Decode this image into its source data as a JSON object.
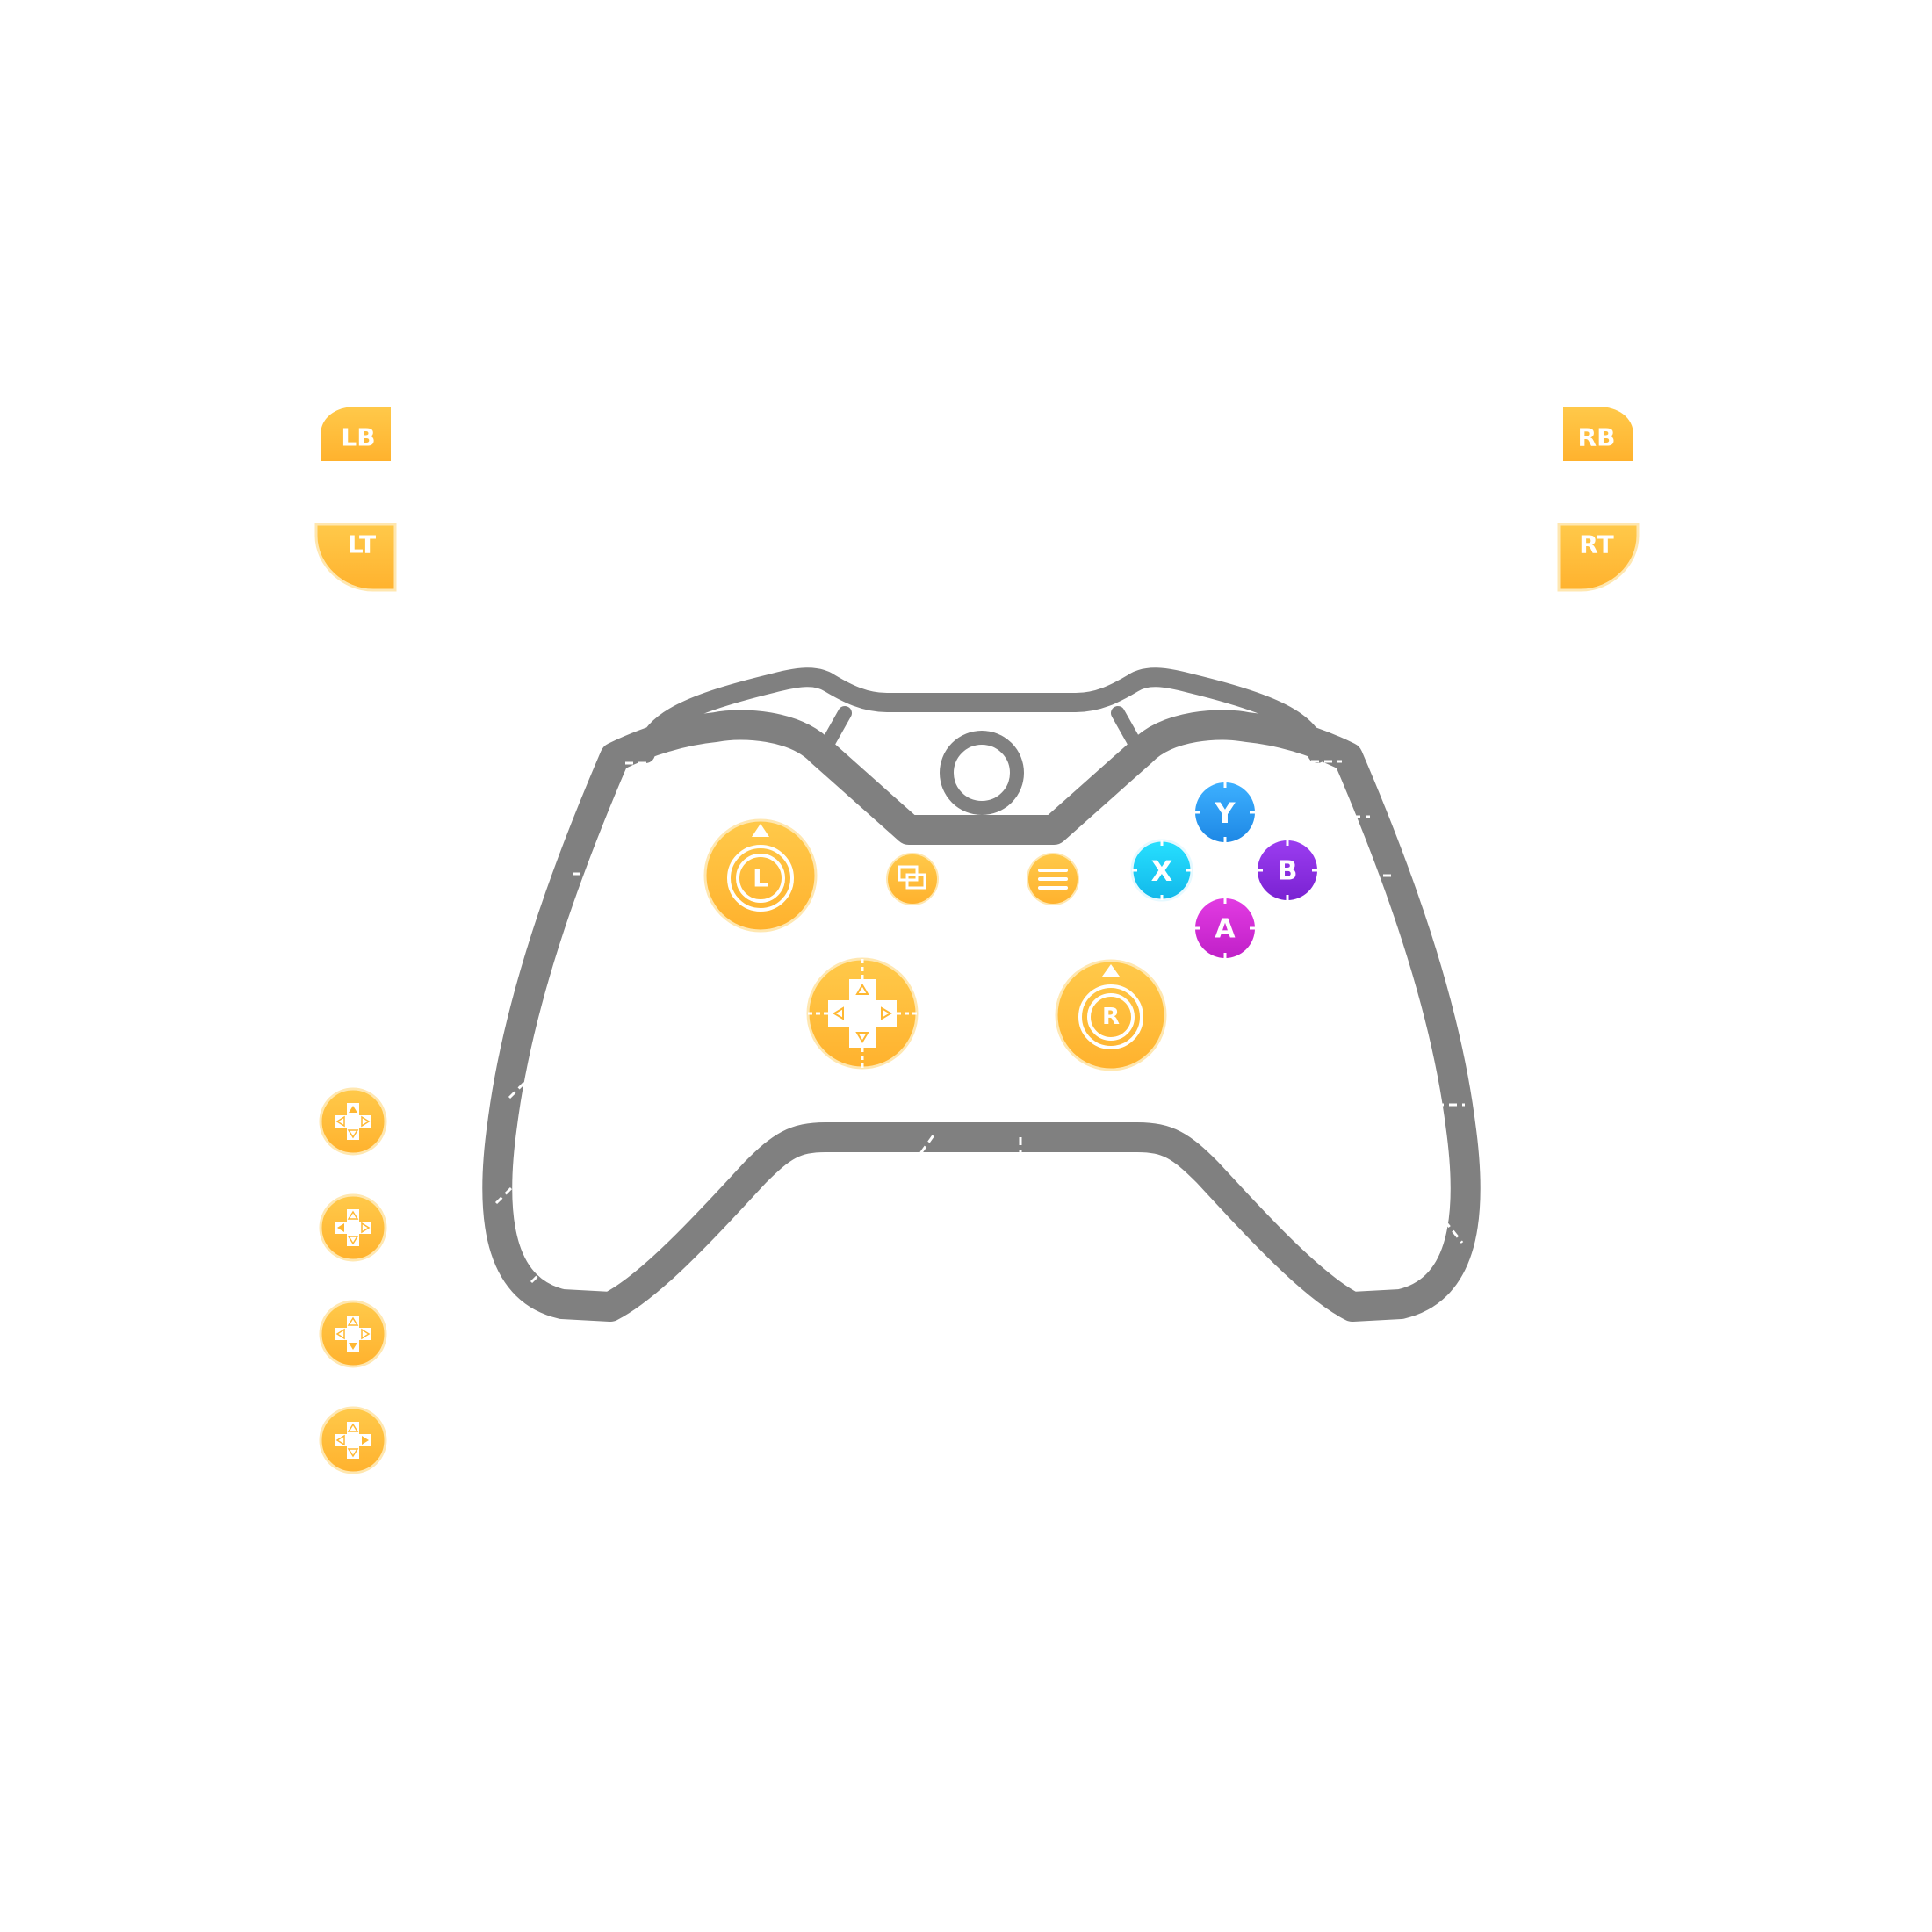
{
  "bumpers": {
    "left_bumper": "LB",
    "left_trigger": "LT",
    "right_bumper": "RB",
    "right_trigger": "RT"
  },
  "sticks": {
    "left_stick": "L",
    "right_stick": "R"
  },
  "face_buttons": {
    "y": "Y",
    "x": "X",
    "b": "B",
    "a": "A"
  },
  "icons": {
    "view": "view-icon",
    "menu": "menu-icon",
    "dpad": "dpad-icon",
    "guide": "guide-button-icon",
    "dpad_up": "dpad-up-icon",
    "dpad_left": "dpad-left-icon",
    "dpad_down": "dpad-down-icon",
    "dpad_right": "dpad-right-icon"
  },
  "colors": {
    "accent": "#ffb832",
    "accent_light": "#ffcc4d",
    "outline": "#7f7f7f",
    "y": "#2aa3f5",
    "x": "#19d6f5",
    "b": "#8a2be2",
    "a": "#d62ad6"
  }
}
